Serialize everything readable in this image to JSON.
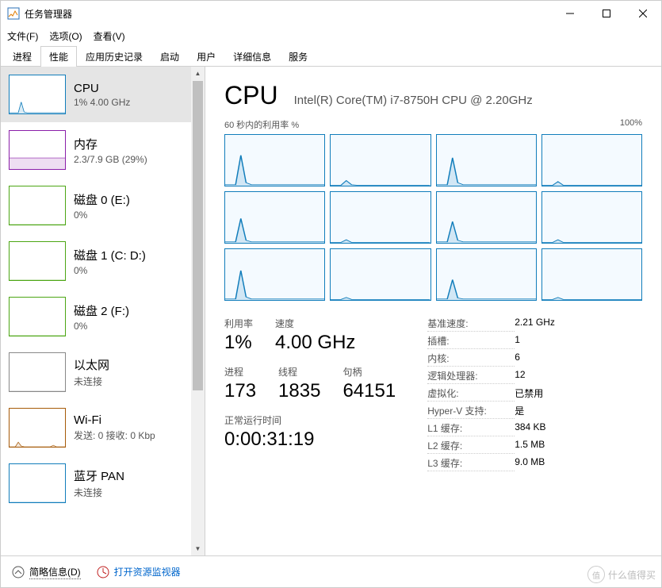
{
  "window": {
    "title": "任务管理器"
  },
  "menu": {
    "file": "文件(F)",
    "options": "选项(O)",
    "view": "查看(V)"
  },
  "tabs": [
    "进程",
    "性能",
    "应用历史记录",
    "启动",
    "用户",
    "详细信息",
    "服务"
  ],
  "sidebar": [
    {
      "name": "CPU",
      "sub": "1% 4.00 GHz",
      "color": "#117dbb",
      "spark": [
        2,
        2,
        2,
        2,
        30,
        4,
        2,
        2,
        2,
        2,
        2,
        2,
        2,
        2,
        2,
        2,
        2,
        2,
        2,
        2
      ]
    },
    {
      "name": "内存",
      "sub": "2.3/7.9 GB (29%)",
      "color": "#8b1fa9",
      "spark": [
        29,
        29,
        29,
        29,
        29,
        29,
        29,
        29,
        29,
        29,
        29,
        29,
        29,
        29,
        29,
        29,
        29,
        29,
        29,
        29
      ]
    },
    {
      "name": "磁盘 0 (E:)",
      "sub": "0%",
      "color": "#4ca614",
      "spark": [
        0,
        0,
        0,
        0,
        0,
        0,
        0,
        0,
        0,
        0,
        0,
        0,
        0,
        0,
        0,
        0,
        0,
        0,
        0,
        0
      ]
    },
    {
      "name": "磁盘 1 (C: D:)",
      "sub": "0%",
      "color": "#4ca614",
      "spark": [
        0,
        0,
        0,
        0,
        0,
        0,
        0,
        0,
        0,
        0,
        0,
        0,
        0,
        0,
        0,
        0,
        0,
        0,
        0,
        0
      ]
    },
    {
      "name": "磁盘 2 (F:)",
      "sub": "0%",
      "color": "#4ca614",
      "spark": [
        0,
        0,
        0,
        0,
        0,
        0,
        0,
        0,
        0,
        0,
        0,
        0,
        0,
        0,
        0,
        0,
        0,
        0,
        0,
        0
      ]
    },
    {
      "name": "以太网",
      "sub": "未连接",
      "color": "#888888",
      "spark": [
        0,
        0,
        0,
        0,
        0,
        0,
        0,
        0,
        0,
        0,
        0,
        0,
        0,
        0,
        0,
        0,
        0,
        0,
        0,
        0
      ]
    },
    {
      "name": "Wi-Fi",
      "sub": "发送: 0 接收: 0 Kbp",
      "color": "#a65a08",
      "spark": [
        0,
        0,
        0,
        12,
        2,
        0,
        0,
        0,
        0,
        0,
        0,
        0,
        0,
        0,
        0,
        4,
        0,
        0,
        0,
        0
      ]
    },
    {
      "name": "蓝牙 PAN",
      "sub": "未连接",
      "color": "#117dbb",
      "spark": [
        0,
        0,
        0,
        0,
        0,
        0,
        0,
        0,
        0,
        0,
        0,
        0,
        0,
        0,
        0,
        0,
        0,
        0,
        0,
        0
      ]
    }
  ],
  "main": {
    "title": "CPU",
    "subtitle": "Intel(R) Core(TM) i7-8750H CPU @ 2.20GHz",
    "chart_left": "60 秒内的利用率 %",
    "chart_right": "100%",
    "core_color": "#117dbb",
    "core_bg": "#f4faff",
    "cores": [
      [
        2,
        2,
        2,
        60,
        6,
        2,
        2,
        2,
        2,
        2,
        2,
        2,
        2,
        2,
        2,
        2,
        2,
        2,
        2,
        2
      ],
      [
        1,
        1,
        1,
        10,
        2,
        1,
        1,
        1,
        1,
        1,
        1,
        1,
        1,
        1,
        1,
        1,
        1,
        1,
        1,
        1
      ],
      [
        2,
        2,
        2,
        55,
        6,
        2,
        2,
        2,
        2,
        2,
        2,
        2,
        2,
        2,
        2,
        2,
        2,
        2,
        2,
        2
      ],
      [
        1,
        1,
        1,
        8,
        1,
        1,
        1,
        1,
        1,
        1,
        1,
        1,
        1,
        1,
        1,
        1,
        1,
        1,
        1,
        1
      ],
      [
        2,
        2,
        2,
        48,
        5,
        2,
        2,
        2,
        2,
        2,
        2,
        2,
        2,
        2,
        2,
        2,
        2,
        2,
        2,
        2
      ],
      [
        1,
        1,
        1,
        6,
        1,
        1,
        1,
        1,
        1,
        1,
        1,
        1,
        1,
        1,
        1,
        1,
        1,
        1,
        1,
        1
      ],
      [
        2,
        2,
        2,
        42,
        5,
        2,
        2,
        2,
        2,
        2,
        2,
        2,
        2,
        2,
        2,
        2,
        2,
        2,
        2,
        2
      ],
      [
        1,
        1,
        1,
        6,
        1,
        1,
        1,
        1,
        1,
        1,
        1,
        1,
        1,
        1,
        1,
        1,
        1,
        1,
        1,
        1
      ],
      [
        2,
        2,
        2,
        58,
        6,
        2,
        2,
        2,
        2,
        2,
        2,
        2,
        2,
        2,
        2,
        2,
        2,
        2,
        2,
        2
      ],
      [
        1,
        1,
        1,
        5,
        1,
        1,
        1,
        1,
        1,
        1,
        1,
        1,
        1,
        1,
        1,
        1,
        1,
        1,
        1,
        1
      ],
      [
        2,
        2,
        2,
        40,
        4,
        2,
        2,
        2,
        2,
        2,
        2,
        2,
        2,
        2,
        2,
        2,
        2,
        2,
        2,
        2
      ],
      [
        1,
        1,
        1,
        5,
        1,
        1,
        1,
        1,
        1,
        1,
        1,
        1,
        1,
        1,
        1,
        1,
        1,
        1,
        1,
        1
      ]
    ],
    "stats_primary": [
      {
        "label": "利用率",
        "value": "1%"
      },
      {
        "label": "速度",
        "value": "4.00 GHz"
      }
    ],
    "stats_secondary": [
      {
        "label": "进程",
        "value": "173"
      },
      {
        "label": "线程",
        "value": "1835"
      },
      {
        "label": "句柄",
        "value": "64151"
      }
    ],
    "uptime_label": "正常运行时间",
    "uptime_value": "0:00:31:19",
    "details": [
      {
        "k": "基准速度:",
        "v": "2.21 GHz"
      },
      {
        "k": "插槽:",
        "v": "1"
      },
      {
        "k": "内核:",
        "v": "6"
      },
      {
        "k": "逻辑处理器:",
        "v": "12"
      },
      {
        "k": "虚拟化:",
        "v": "已禁用"
      },
      {
        "k": "Hyper-V 支持:",
        "v": "是"
      },
      {
        "k": "L1 缓存:",
        "v": "384 KB"
      },
      {
        "k": "L2 缓存:",
        "v": "1.5 MB"
      },
      {
        "k": "L3 缓存:",
        "v": "9.0 MB"
      }
    ]
  },
  "footer": {
    "less": "简略信息(D)",
    "resmon": "打开资源监视器"
  },
  "watermark": "什么值得买"
}
